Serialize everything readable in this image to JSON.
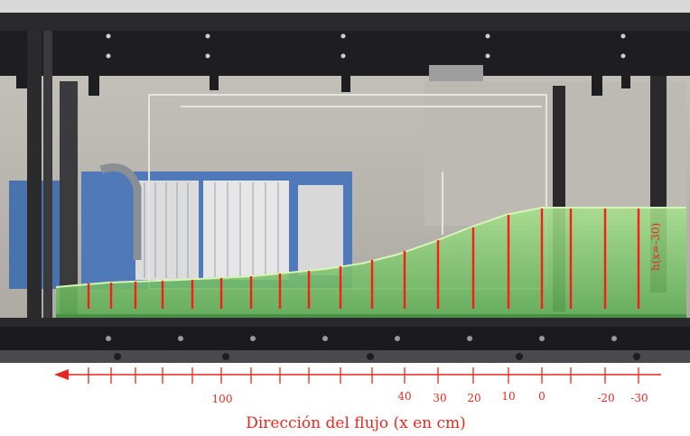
{
  "image": {
    "subject": "laboratory-flume-photo",
    "gauge_label": "h(x=-30)",
    "colors": {
      "water": "#7cc86a",
      "water_top": "#a6e08c",
      "gauge_lines": "#ff1a1a",
      "annotation": "#e8281e",
      "frame": "#1e1e20",
      "wall": "#b9b6b0"
    }
  },
  "axis": {
    "caption": "Dirección del flujo (x en cm)",
    "arrow": "flow-direction-left",
    "tick_labels": [
      {
        "text": "100",
        "value": 100
      },
      {
        "text": "40",
        "value": 40
      },
      {
        "text": "30",
        "value": 30
      },
      {
        "text": "20",
        "value": 20
      },
      {
        "text": "10",
        "value": 10
      },
      {
        "text": "0",
        "value": 0
      },
      {
        "text": "-20",
        "value": -20
      },
      {
        "text": "-30",
        "value": -30
      }
    ]
  }
}
